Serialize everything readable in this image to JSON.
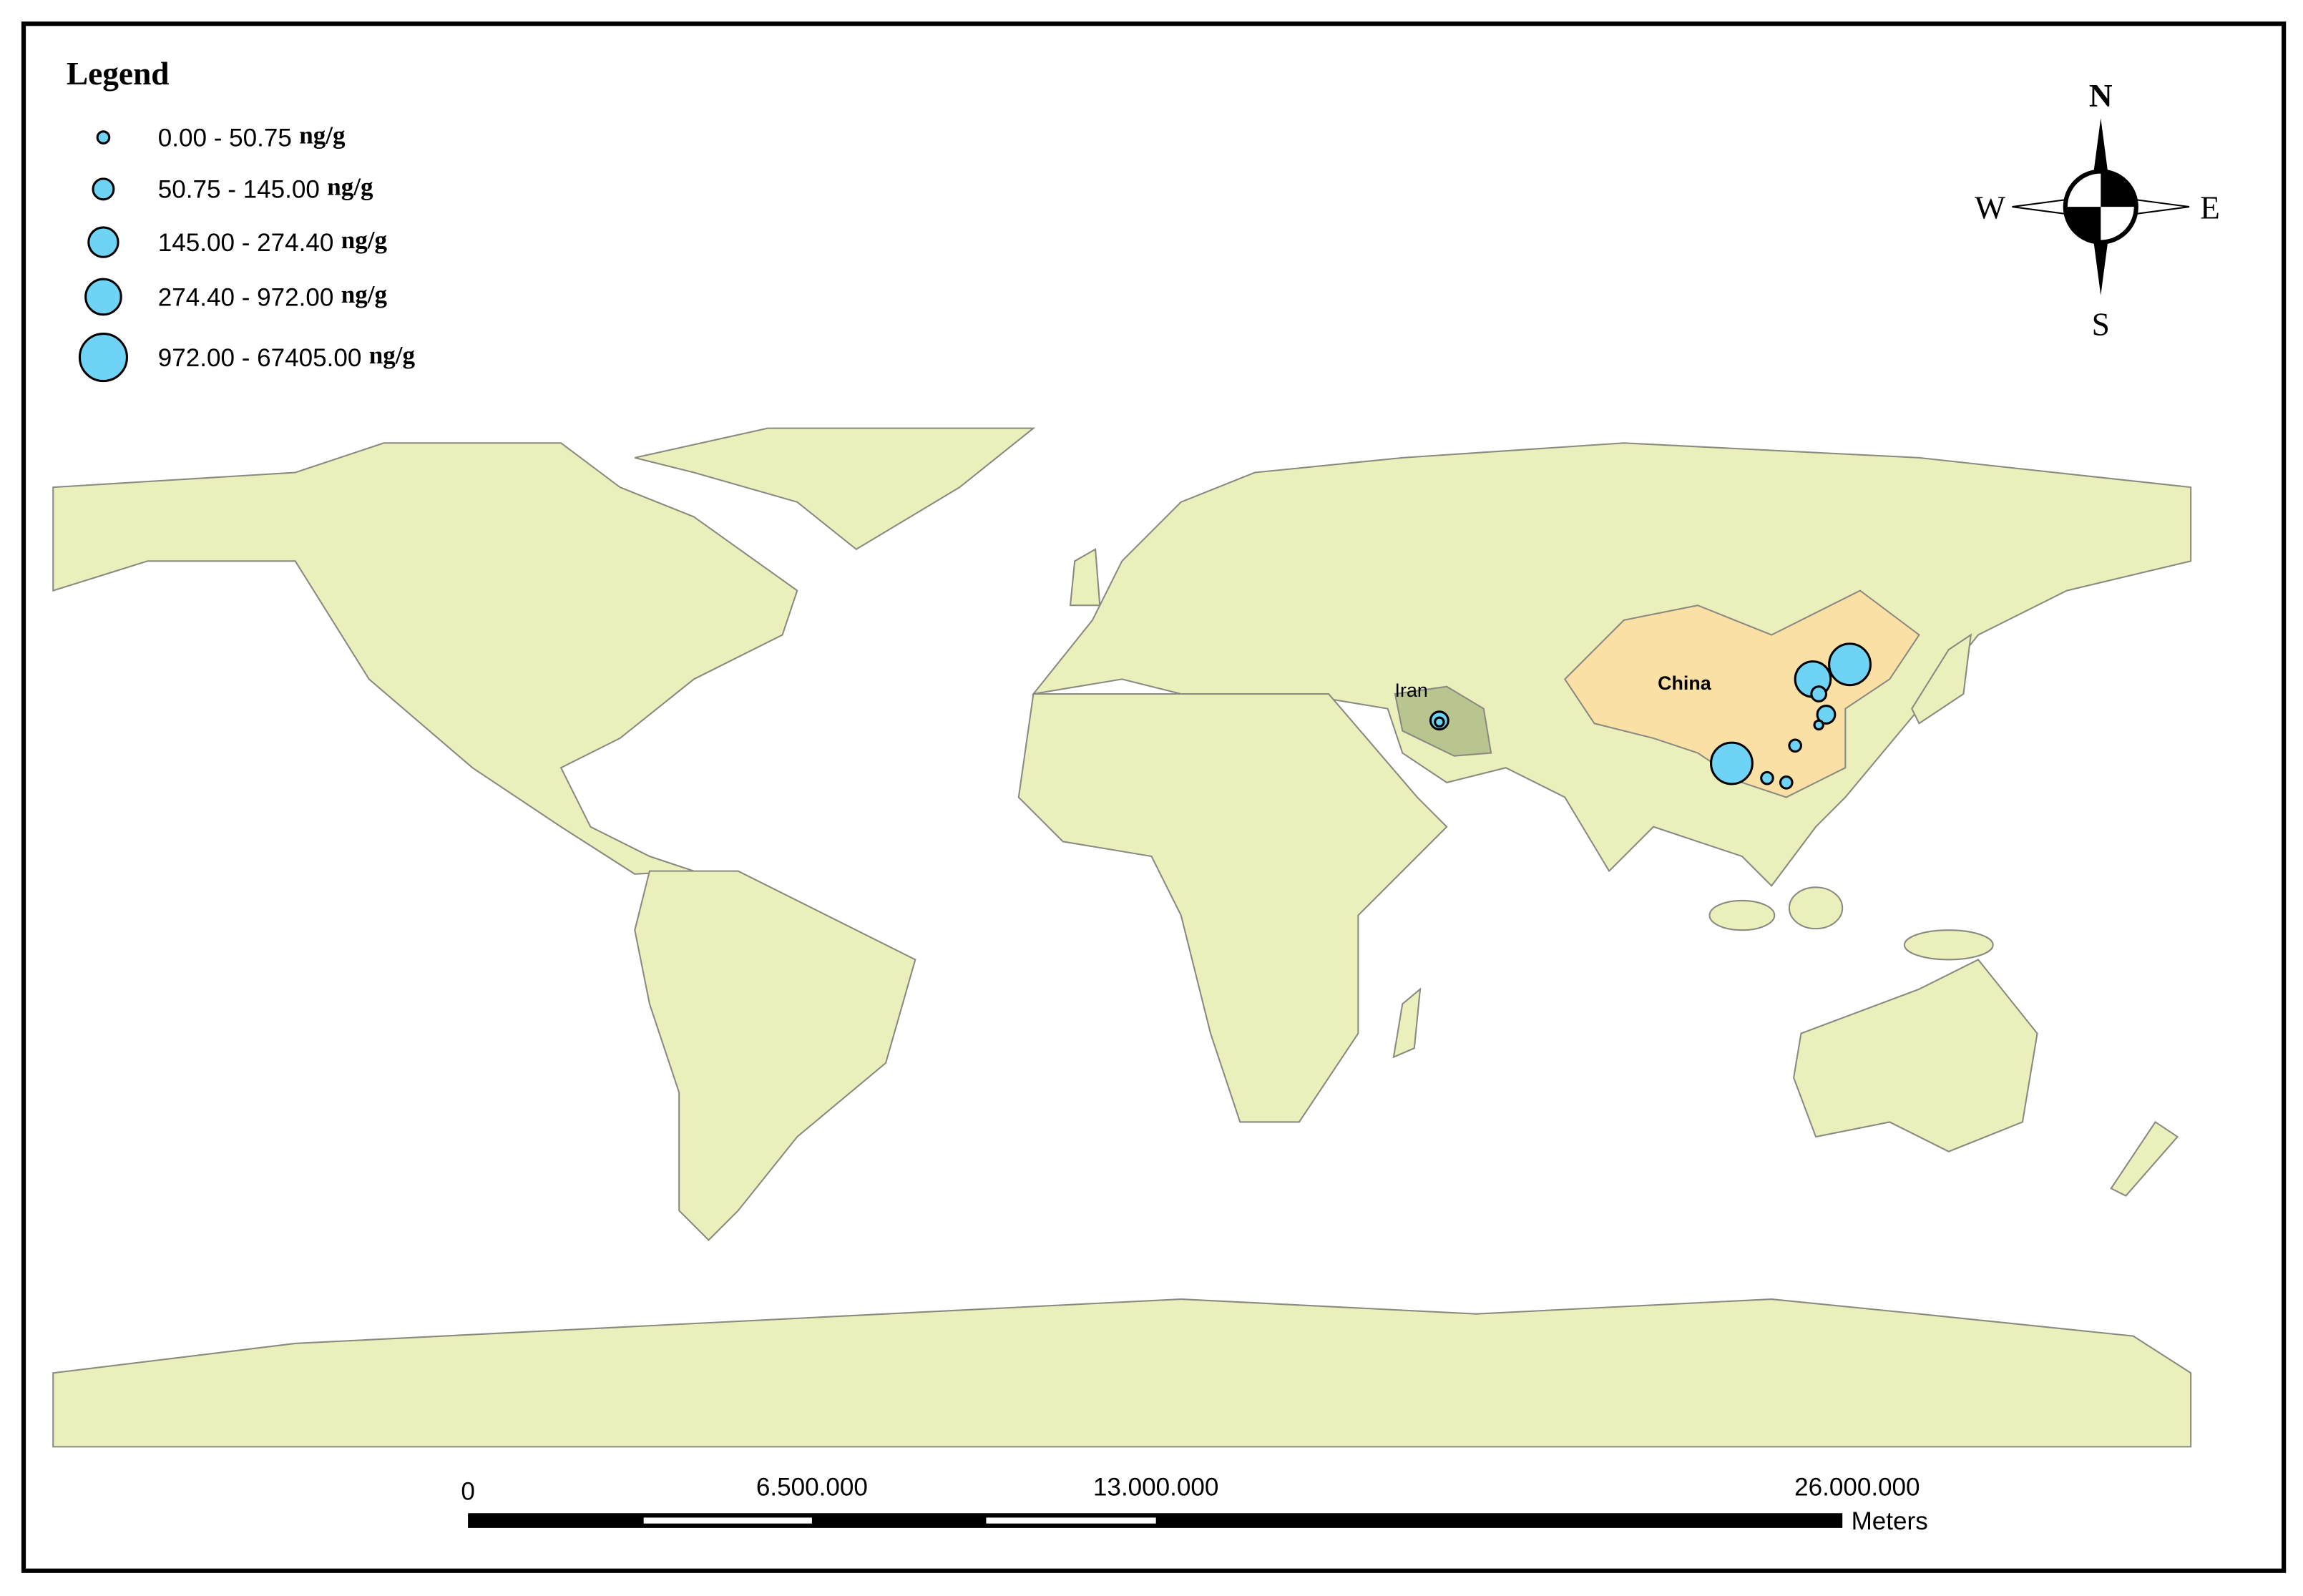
{
  "legend": {
    "title": "Legend",
    "items": [
      {
        "range": "0.00 - 50.75",
        "unit": "ng/g"
      },
      {
        "range": "50.75 - 145.00",
        "unit": "ng/g"
      },
      {
        "range": "145.00 - 274.40",
        "unit": "ng/g"
      },
      {
        "range": "274.40 - 972.00",
        "unit": "ng/g"
      },
      {
        "range": "972.00 - 67405.00",
        "unit": "ng/g"
      }
    ]
  },
  "compass": {
    "north": "N",
    "south": "S",
    "east": "E",
    "west": "W"
  },
  "countries": {
    "iran": "Iran",
    "china": "China"
  },
  "scale_bar": {
    "labels": [
      "0",
      "6.500.000",
      "13.000.000",
      "26.000.000"
    ],
    "unit": "Meters"
  }
}
